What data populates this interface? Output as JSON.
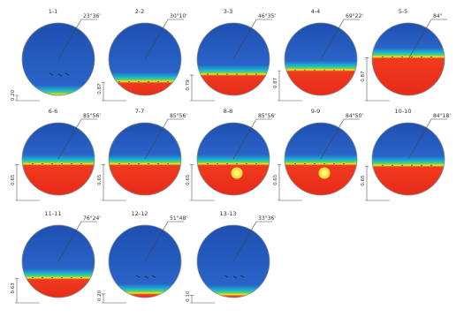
{
  "panels": [
    {
      "title": "1-1",
      "angle": "23°36'",
      "depth": "0.20",
      "level": 0.0,
      "hot": 0.0
    },
    {
      "title": "2-2",
      "angle": "30°10'",
      "depth": "0.87",
      "level": 0.18,
      "hot": 0.0
    },
    {
      "title": "3-3",
      "angle": "46°35'",
      "depth": "0.79",
      "level": 0.28,
      "hot": 0.0
    },
    {
      "title": "4-4",
      "angle": "69°22'",
      "depth": "0.87",
      "level": 0.34,
      "hot": 0.0
    },
    {
      "title": "5-5",
      "angle": "84°",
      "depth": "0.87",
      "level": 0.52,
      "hot": 0.0
    },
    {
      "title": "6-6",
      "angle": "85°56'",
      "depth": "0.65",
      "level": 0.42,
      "hot": 0.0
    },
    {
      "title": "7-7",
      "angle": "85°56'",
      "depth": "0.65",
      "level": 0.42,
      "hot": 0.0
    },
    {
      "title": "8-8",
      "angle": "85°56'",
      "depth": "0.65",
      "level": 0.42,
      "hot": 1.0
    },
    {
      "title": "9-9",
      "angle": "84°50'",
      "depth": "0.65",
      "level": 0.42,
      "hot": 1.0
    },
    {
      "title": "10-10",
      "angle": "84°18'",
      "depth": "0.65",
      "level": 0.4,
      "hot": 0.0
    },
    {
      "title": "11-11",
      "angle": "76°24'",
      "depth": "0.63",
      "level": 0.26,
      "hot": 0.0
    },
    {
      "title": "12-12",
      "angle": "51°48'",
      "depth": "0.20",
      "level": 0.05,
      "hot": 0.0
    },
    {
      "title": "13-13",
      "angle": "33°36'",
      "depth": "0.10",
      "level": 0.03,
      "hot": 0.0
    }
  ]
}
